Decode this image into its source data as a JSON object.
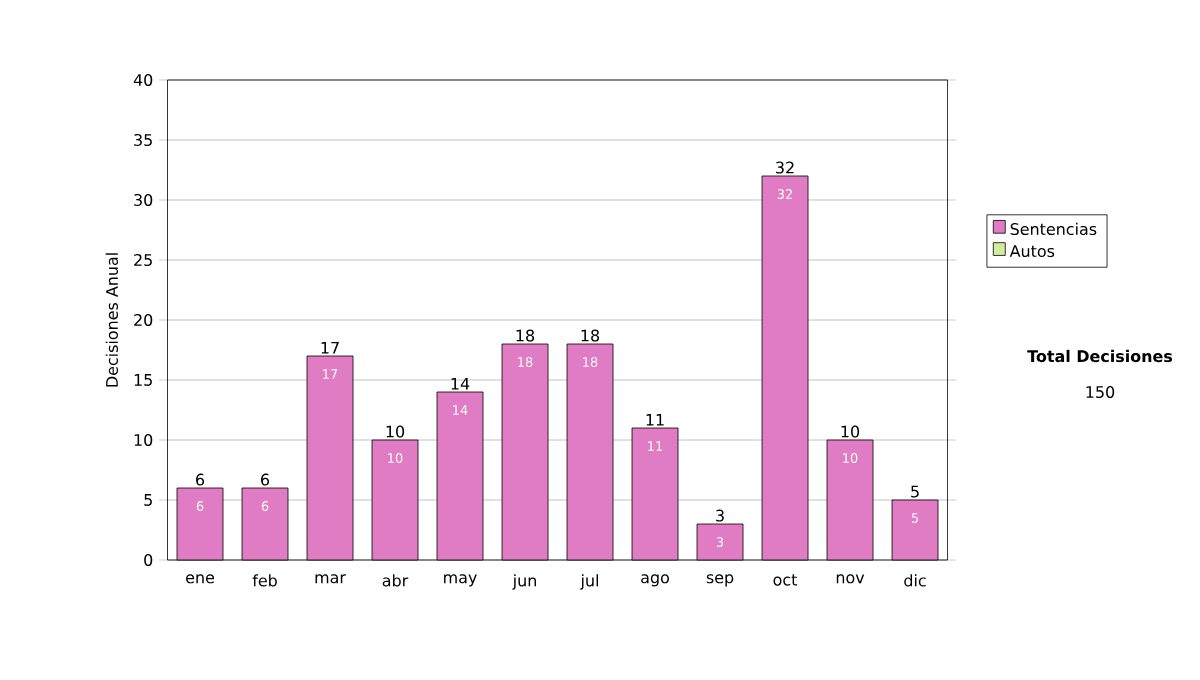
{
  "chart_data": {
    "type": "bar",
    "stacked": true,
    "ylabel": "Decisiones Anual",
    "categories": [
      "ene",
      "feb",
      "mar",
      "abr",
      "may",
      "jun",
      "jul",
      "ago",
      "sep",
      "oct",
      "nov",
      "dic"
    ],
    "series": [
      {
        "name": "Sentencias",
        "color": "#e07cc4",
        "values": [
          6,
          6,
          17,
          10,
          14,
          18,
          18,
          11,
          3,
          32,
          10,
          5
        ],
        "value_labels": [
          "6",
          "6",
          "17",
          "10",
          "14",
          "18",
          "18",
          "11",
          "3",
          "32",
          "10",
          "5"
        ]
      },
      {
        "name": "Autos",
        "color": "#d4ec9c",
        "values": [
          0,
          0,
          0,
          0,
          0,
          0,
          0,
          0,
          0,
          0,
          0,
          0
        ]
      }
    ],
    "totals": [
      "6",
      "6",
      "17",
      "10",
      "14",
      "18",
      "18",
      "11",
      "3",
      "32",
      "10",
      "5"
    ],
    "ylim": [
      0,
      40
    ],
    "yticks": [
      0,
      5,
      10,
      15,
      20,
      25,
      30,
      35,
      40
    ],
    "grid": "y",
    "legend": "right",
    "annotations": [
      "Total Decisiones",
      "150"
    ]
  }
}
